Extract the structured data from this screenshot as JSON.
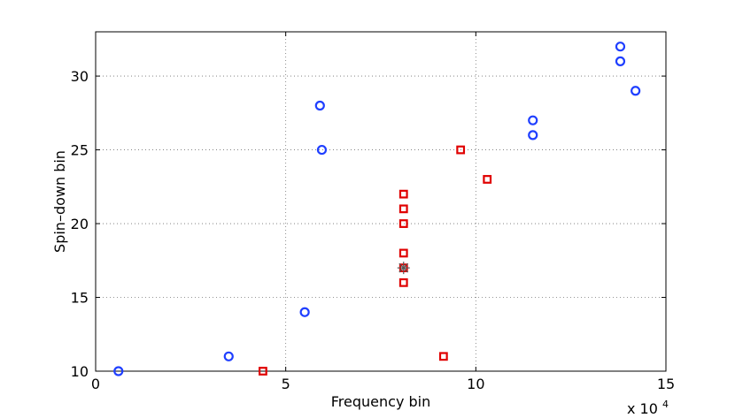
{
  "chart_data": {
    "type": "scatter",
    "title": "",
    "xlabel": "Frequency bin",
    "ylabel": "Spin–down bin",
    "x_multiplier_label": "x 10",
    "x_multiplier_exp": "4",
    "xlim": [
      0,
      15
    ],
    "ylim": [
      10,
      33
    ],
    "xticks": [
      0,
      5,
      10,
      15
    ],
    "yticks": [
      10,
      15,
      20,
      25,
      30
    ],
    "grid": true,
    "series": [
      {
        "marker": "circle",
        "color": "#1f3fff",
        "points": [
          [
            0.6,
            10
          ],
          [
            3.5,
            11
          ],
          [
            5.5,
            14
          ],
          [
            5.9,
            28
          ],
          [
            5.95,
            25
          ],
          [
            11.5,
            27
          ],
          [
            11.5,
            26
          ],
          [
            13.8,
            32
          ],
          [
            13.8,
            31
          ],
          [
            14.2,
            29
          ]
        ]
      },
      {
        "marker": "square",
        "color": "#e00000",
        "points": [
          [
            4.4,
            10
          ],
          [
            8.1,
            22
          ],
          [
            8.1,
            21
          ],
          [
            8.1,
            20
          ],
          [
            8.1,
            18
          ],
          [
            8.1,
            17
          ],
          [
            8.1,
            16
          ],
          [
            9.15,
            11
          ],
          [
            9.6,
            25
          ],
          [
            10.3,
            23
          ]
        ]
      },
      {
        "marker": "star",
        "color": "#555555",
        "points": [
          [
            8.1,
            17
          ]
        ]
      }
    ]
  }
}
